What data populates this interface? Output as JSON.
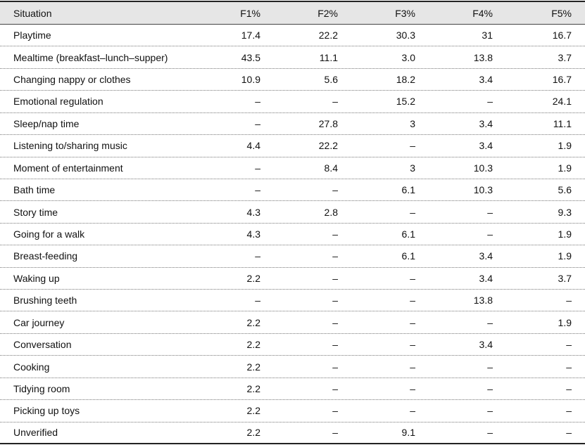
{
  "table": {
    "header": [
      "Situation",
      "F1%",
      "F2%",
      "F3%",
      "F4%",
      "F5%"
    ],
    "rows": [
      [
        "Playtime",
        "17.4",
        "22.2",
        "30.3",
        "31",
        "16.7"
      ],
      [
        "Mealtime (breakfast–lunch–supper)",
        "43.5",
        "11.1",
        "3.0",
        "13.8",
        "3.7"
      ],
      [
        "Changing nappy or clothes",
        "10.9",
        "5.6",
        "18.2",
        "3.4",
        "16.7"
      ],
      [
        "Emotional regulation",
        "–",
        "–",
        "15.2",
        "–",
        "24.1"
      ],
      [
        "Sleep/nap time",
        "–",
        "27.8",
        "3",
        "3.4",
        "11.1"
      ],
      [
        "Listening to/sharing music",
        "4.4",
        "22.2",
        "–",
        "3.4",
        "1.9"
      ],
      [
        "Moment of entertainment",
        "–",
        "8.4",
        "3",
        "10.3",
        "1.9"
      ],
      [
        "Bath time",
        "–",
        "–",
        "6.1",
        "10.3",
        "5.6"
      ],
      [
        "Story time",
        "4.3",
        "2.8",
        "–",
        "–",
        "9.3"
      ],
      [
        "Going for a walk",
        "4.3",
        "–",
        "6.1",
        "–",
        "1.9"
      ],
      [
        "Breast-feeding",
        "–",
        "–",
        "6.1",
        "3.4",
        "1.9"
      ],
      [
        "Waking up",
        "2.2",
        "–",
        "–",
        "3.4",
        "3.7"
      ],
      [
        "Brushing teeth",
        "–",
        "–",
        "–",
        "13.8",
        "–"
      ],
      [
        "Car journey",
        "2.2",
        "–",
        "–",
        "–",
        "1.9"
      ],
      [
        "Conversation",
        "2.2",
        "–",
        "–",
        "3.4",
        "–"
      ],
      [
        "Cooking",
        "2.2",
        "–",
        "–",
        "–",
        "–"
      ],
      [
        "Tidying room",
        "2.2",
        "–",
        "–",
        "–",
        "–"
      ],
      [
        "Picking up toys",
        "2.2",
        "–",
        "–",
        "–",
        "–"
      ],
      [
        "Unverified",
        "2.2",
        "–",
        "9.1",
        "–",
        "–"
      ]
    ]
  }
}
